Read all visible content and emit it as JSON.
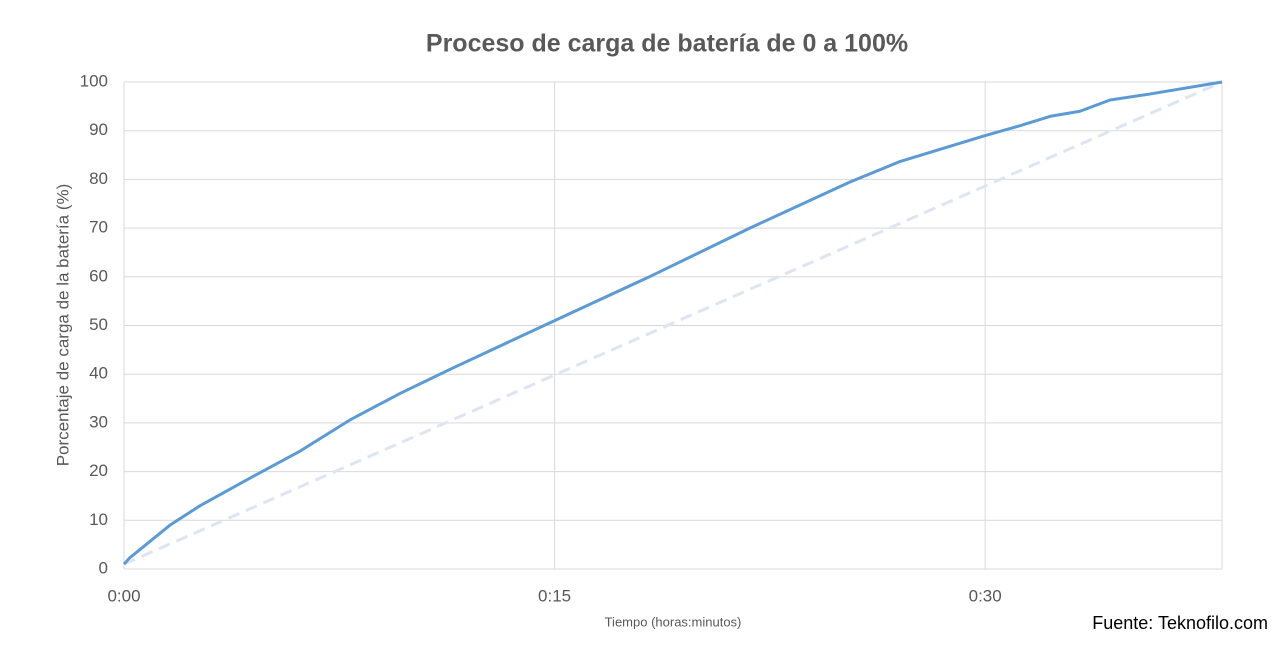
{
  "chart_data": {
    "type": "line",
    "title": "Proceso de carga de batería de 0 a 100%",
    "x_label": "Tiempo (horas:minutos)",
    "y_label": "Porcentaje de carga de la batería (%)",
    "annotation": "Fuente: Teknofilo.com",
    "xlim": [
      0,
      38.25
    ],
    "xticks": [
      {
        "value": 0,
        "label": "0:00"
      },
      {
        "value": 15,
        "label": "0:15"
      },
      {
        "value": 30,
        "label": "0:30"
      }
    ],
    "ylim": [
      0,
      100
    ],
    "yticks": [
      0,
      10,
      20,
      30,
      40,
      50,
      60,
      70,
      80,
      90,
      100
    ],
    "grid": true,
    "series": [
      {
        "color": "#5b9bd5",
        "dashed": false,
        "x": [
          0,
          0.2,
          1.6,
          2.65,
          4.4,
          6.13,
          7.87,
          9.6,
          11.36,
          13.1,
          15,
          18.3,
          21.8,
          25.3,
          27,
          30,
          31.2,
          32.3,
          33.3,
          34.35,
          35.7,
          38.25
        ],
        "values": [
          1,
          2.3,
          9,
          13,
          18.7,
          24.2,
          30.6,
          36,
          41,
          45.8,
          51,
          60,
          70,
          79.5,
          83.6,
          89,
          91,
          93,
          94,
          96.3,
          97.5,
          100
        ]
      },
      {
        "color": "#dce6f2",
        "dashed": true,
        "x": [
          0,
          38.25
        ],
        "values": [
          1,
          100
        ]
      }
    ]
  }
}
